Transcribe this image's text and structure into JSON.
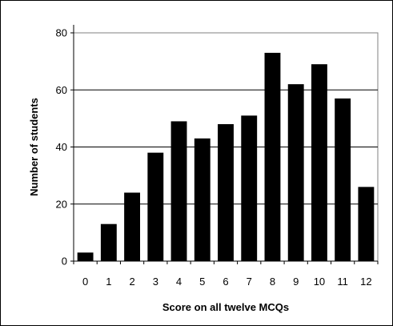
{
  "chart_data": {
    "type": "bar",
    "title": "",
    "xlabel": "Score on all twelve MCQs",
    "ylabel": "Number of students",
    "categories": [
      "0",
      "1",
      "2",
      "3",
      "4",
      "5",
      "6",
      "7",
      "8",
      "9",
      "10",
      "11",
      "12"
    ],
    "values": [
      3,
      13,
      24,
      38,
      49,
      43,
      48,
      51,
      73,
      62,
      69,
      57,
      26
    ],
    "ylim": [
      0,
      80
    ],
    "yticks": [
      "0",
      "20",
      "40",
      "60",
      "80"
    ],
    "grid": "horizontal",
    "legend": "none",
    "bar_color": "#000000",
    "grid_color": "#000000",
    "frame_color": "#808080"
  }
}
